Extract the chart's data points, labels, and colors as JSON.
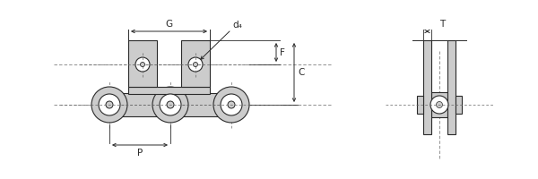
{
  "bg_color": "#ffffff",
  "line_color": "#2a2a2a",
  "fill_color": "#cccccc",
  "fill_light": "#e0e0e0",
  "dim_color": "#222222",
  "dashed_color": "#666666",
  "labels": {
    "G": "G",
    "d4": "d₄",
    "C": "C",
    "F": "F",
    "P": "P",
    "T": "T"
  },
  "font_size": 7.5,
  "figsize": [
    6.0,
    2.0
  ],
  "dpi": 100
}
